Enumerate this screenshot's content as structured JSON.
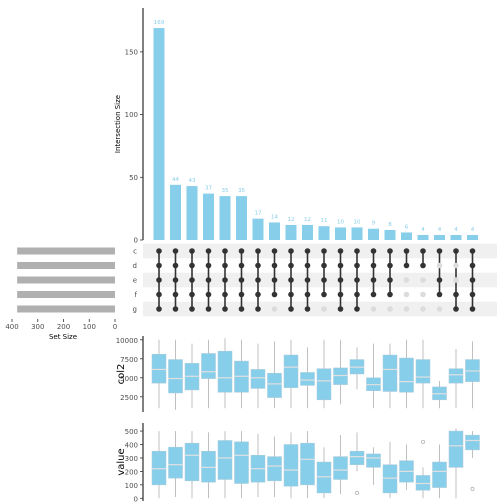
{
  "chart_data": {
    "type": "upset",
    "sets": [
      "c",
      "d",
      "e",
      "f",
      "g"
    ],
    "set_size": {
      "xlabel": "Set Size",
      "ticks": [
        400,
        300,
        200,
        100,
        0
      ],
      "values": [
        380,
        380,
        380,
        380,
        380
      ],
      "bar_color": "#b0b0b0"
    },
    "intersections": {
      "ylabel": "Intersection Size",
      "yticks": [
        0,
        50,
        100,
        150
      ],
      "ylim": [
        0,
        185
      ],
      "bar_color": "#87ceeb",
      "label_color": "#87ceeb",
      "values": [
        169,
        44,
        43,
        37,
        35,
        35,
        17,
        14,
        12,
        12,
        11,
        10,
        10,
        9,
        8,
        6,
        4,
        4,
        4,
        4
      ],
      "labels": [
        "169",
        "44",
        "43",
        "37",
        "35",
        "35",
        "17",
        "14",
        "12",
        "12",
        "11",
        "10",
        "10",
        "9",
        "8",
        "6",
        "4",
        "4",
        "4",
        "4"
      ],
      "membership": [
        [
          "c",
          "d",
          "e",
          "f",
          "g"
        ],
        [
          "c",
          "d",
          "e",
          "f",
          "g"
        ],
        [
          "c",
          "d",
          "e",
          "f",
          "g"
        ],
        [
          "c",
          "d",
          "e",
          "f",
          "g"
        ],
        [
          "c",
          "d",
          "e",
          "f",
          "g"
        ],
        [
          "c",
          "d",
          "e",
          "f",
          "g"
        ],
        [
          "c",
          "d",
          "e",
          "f",
          "g"
        ],
        [
          "c",
          "d",
          "e",
          "f"
        ],
        [
          "c",
          "d",
          "e",
          "f",
          "g"
        ],
        [
          "c",
          "d",
          "e",
          "f",
          "g"
        ],
        [
          "c",
          "d",
          "e",
          "f"
        ],
        [
          "c",
          "d",
          "e",
          "f",
          "g"
        ],
        [
          "c",
          "d",
          "e",
          "f",
          "g"
        ],
        [
          "c",
          "d",
          "e",
          "f"
        ],
        [
          "c",
          "d",
          "e",
          "f"
        ],
        [
          "c",
          "d"
        ],
        [
          "c",
          "d"
        ],
        [
          "c",
          "e",
          "f"
        ],
        [
          "c",
          "f",
          "g"
        ],
        [
          "c",
          "d",
          "e",
          "f",
          "g"
        ]
      ],
      "dot_on": "#333333",
      "dot_off": "#dcdcdc",
      "stripe": "#f0f0f0"
    },
    "boxplots": [
      {
        "ylabel": "col2",
        "yticks": [
          2500,
          5000,
          7500,
          10000
        ],
        "ylim": [
          500,
          10500
        ],
        "fill": "#87ceeb",
        "median_color": "#e0e0e0",
        "boxes": [
          {
            "q1": 4300,
            "med": 6100,
            "q3": 8100,
            "lo": 1000,
            "hi": 10000
          },
          {
            "q1": 3000,
            "med": 4900,
            "q3": 7400,
            "lo": 800,
            "hi": 10000
          },
          {
            "q1": 3400,
            "med": 5200,
            "q3": 6900,
            "lo": 1000,
            "hi": 9500
          },
          {
            "q1": 4900,
            "med": 5800,
            "q3": 8200,
            "lo": 1000,
            "hi": 10000
          },
          {
            "q1": 3100,
            "med": 5000,
            "q3": 8500,
            "lo": 1000,
            "hi": 10200
          },
          {
            "q1": 3100,
            "med": 5200,
            "q3": 7200,
            "lo": 1000,
            "hi": 10000
          },
          {
            "q1": 3600,
            "med": 5000,
            "q3": 6100,
            "lo": 1000,
            "hi": 9500
          },
          {
            "q1": 2400,
            "med": 4200,
            "q3": 5600,
            "lo": 1000,
            "hi": 9800
          },
          {
            "q1": 3700,
            "med": 6400,
            "q3": 8000,
            "lo": 1000,
            "hi": 10000
          },
          {
            "q1": 4000,
            "med": 4700,
            "q3": 5700,
            "lo": 1000,
            "hi": 9000
          },
          {
            "q1": 2100,
            "med": 4600,
            "q3": 6200,
            "lo": 1000,
            "hi": 10000
          },
          {
            "q1": 4100,
            "med": 5300,
            "q3": 6300,
            "lo": 1500,
            "hi": 10000
          },
          {
            "q1": 5500,
            "med": 6400,
            "q3": 7400,
            "lo": 3500,
            "hi": 9000
          },
          {
            "q1": 3300,
            "med": 4100,
            "q3": 5000,
            "lo": 1000,
            "hi": 9500
          },
          {
            "q1": 3200,
            "med": 6100,
            "q3": 8000,
            "lo": 1000,
            "hi": 9500
          },
          {
            "q1": 3100,
            "med": 4500,
            "q3": 7600,
            "lo": 1000,
            "hi": 10000
          },
          {
            "q1": 4300,
            "med": 5100,
            "q3": 7400,
            "lo": 1000,
            "hi": 10000
          },
          {
            "q1": 2100,
            "med": 2900,
            "q3": 3800,
            "lo": 1000,
            "hi": 4600
          },
          {
            "q1": 4300,
            "med": 5400,
            "q3": 6200,
            "lo": 1000,
            "hi": 8800
          },
          {
            "q1": 4500,
            "med": 5900,
            "q3": 7400,
            "lo": 1000,
            "hi": 9800
          }
        ]
      },
      {
        "ylabel": "value",
        "yticks": [
          0,
          100,
          200,
          300,
          400,
          500
        ],
        "ylim": [
          -20,
          560
        ],
        "fill": "#87ceeb",
        "median_color": "#e0e0e0",
        "boxes": [
          {
            "q1": 100,
            "med": 220,
            "q3": 350,
            "lo": 0,
            "hi": 500,
            "out": []
          },
          {
            "q1": 150,
            "med": 250,
            "q3": 380,
            "lo": 10,
            "hi": 500,
            "out": []
          },
          {
            "q1": 130,
            "med": 320,
            "q3": 410,
            "lo": 0,
            "hi": 500,
            "out": []
          },
          {
            "q1": 120,
            "med": 230,
            "q3": 350,
            "lo": 0,
            "hi": 490,
            "out": []
          },
          {
            "q1": 140,
            "med": 300,
            "q3": 430,
            "lo": 0,
            "hi": 500,
            "out": []
          },
          {
            "q1": 110,
            "med": 320,
            "q3": 420,
            "lo": 0,
            "hi": 500,
            "out": []
          },
          {
            "q1": 120,
            "med": 220,
            "q3": 320,
            "lo": 10,
            "hi": 480,
            "out": []
          },
          {
            "q1": 130,
            "med": 240,
            "q3": 310,
            "lo": 10,
            "hi": 460,
            "out": []
          },
          {
            "q1": 90,
            "med": 210,
            "q3": 400,
            "lo": 0,
            "hi": 490,
            "out": []
          },
          {
            "q1": 100,
            "med": 290,
            "q3": 410,
            "lo": 0,
            "hi": 500,
            "out": []
          },
          {
            "q1": 40,
            "med": 160,
            "q3": 270,
            "lo": 0,
            "hi": 380,
            "out": []
          },
          {
            "q1": 140,
            "med": 210,
            "q3": 310,
            "lo": 30,
            "hi": 470,
            "out": []
          },
          {
            "q1": 250,
            "med": 310,
            "q3": 350,
            "lo": 200,
            "hi": 490,
            "out": [
              40
            ]
          },
          {
            "q1": 230,
            "med": 300,
            "q3": 330,
            "lo": 100,
            "hi": 380,
            "out": []
          },
          {
            "q1": 40,
            "med": 150,
            "q3": 250,
            "lo": 0,
            "hi": 420,
            "out": []
          },
          {
            "q1": 120,
            "med": 200,
            "q3": 280,
            "lo": 60,
            "hi": 400,
            "out": []
          },
          {
            "q1": 60,
            "med": 110,
            "q3": 170,
            "lo": 0,
            "hi": 230,
            "out": [
              420
            ]
          },
          {
            "q1": 80,
            "med": 200,
            "q3": 270,
            "lo": 0,
            "hi": 400,
            "out": []
          },
          {
            "q1": 230,
            "med": 390,
            "q3": 500,
            "lo": 0,
            "hi": 520,
            "out": []
          },
          {
            "q1": 360,
            "med": 430,
            "q3": 470,
            "lo": 300,
            "hi": 500,
            "out": [
              70
            ]
          }
        ]
      }
    ]
  }
}
